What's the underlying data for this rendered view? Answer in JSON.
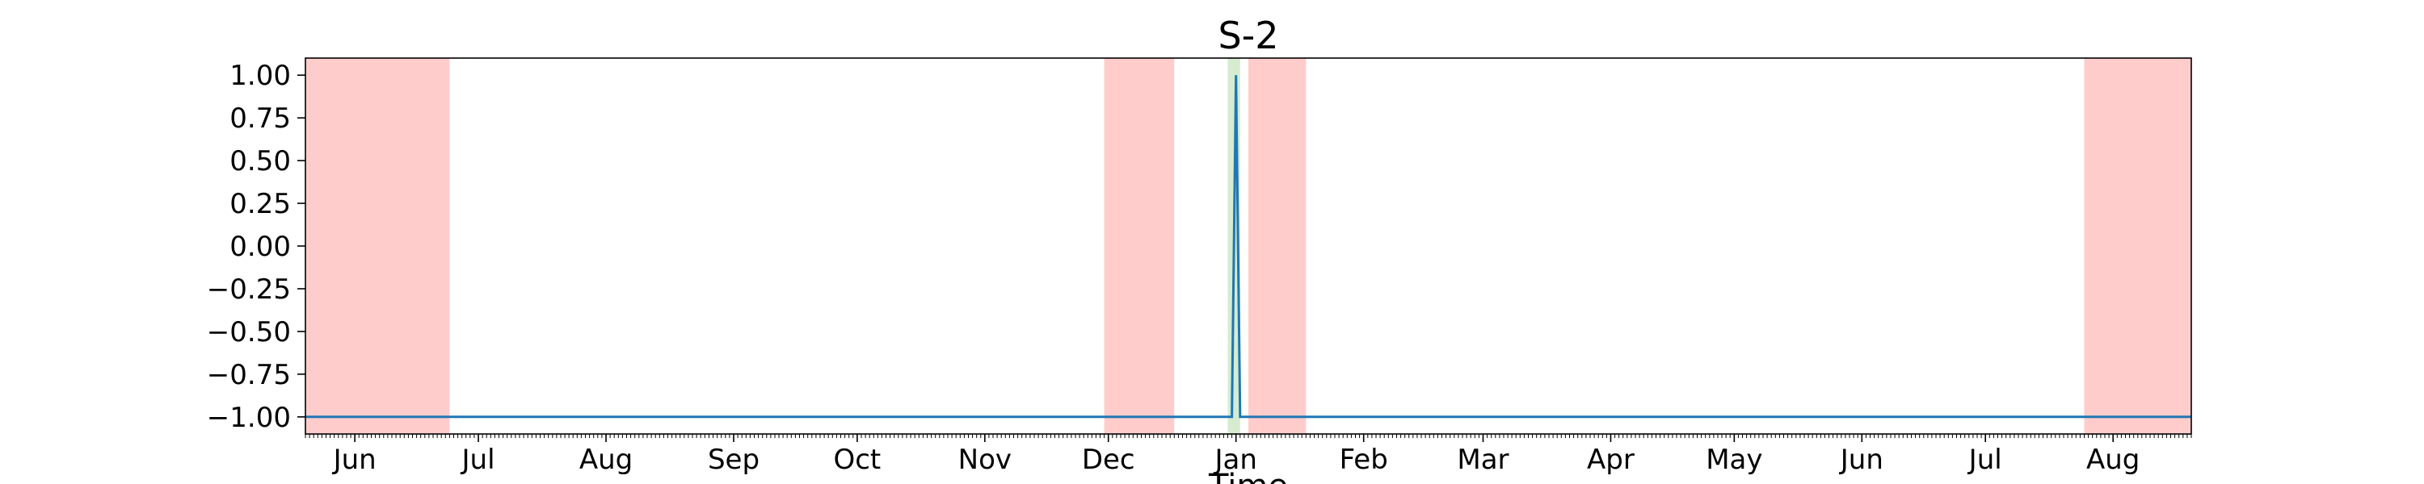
{
  "chart_data": {
    "type": "line",
    "title": "S-2",
    "xlabel": "Time",
    "ylabel": "",
    "x_range": [
      "2023-05-20",
      "2024-08-20"
    ],
    "ylim": [
      -1.1,
      1.1
    ],
    "yticks": [
      {
        "value": 1.0,
        "label": "1.00"
      },
      {
        "value": 0.75,
        "label": "0.75"
      },
      {
        "value": 0.5,
        "label": "0.50"
      },
      {
        "value": 0.25,
        "label": "0.25"
      },
      {
        "value": 0.0,
        "label": "0.00"
      },
      {
        "value": -0.25,
        "label": "−0.25"
      },
      {
        "value": -0.5,
        "label": "−0.50"
      },
      {
        "value": -0.75,
        "label": "−0.75"
      },
      {
        "value": -1.0,
        "label": "−1.00"
      }
    ],
    "xticks": [
      {
        "date": "2023-06-01",
        "label": "Jun"
      },
      {
        "date": "2023-07-01",
        "label": "Jul"
      },
      {
        "date": "2023-08-01",
        "label": "Aug"
      },
      {
        "date": "2023-09-01",
        "label": "Sep"
      },
      {
        "date": "2023-10-01",
        "label": "Oct"
      },
      {
        "date": "2023-11-01",
        "label": "Nov"
      },
      {
        "date": "2023-12-01",
        "label": "Dec"
      },
      {
        "date": "2024-01-01",
        "label": "Jan"
      },
      {
        "date": "2024-02-01",
        "label": "Feb"
      },
      {
        "date": "2024-03-01",
        "label": "Mar"
      },
      {
        "date": "2024-04-01",
        "label": "Apr"
      },
      {
        "date": "2024-05-01",
        "label": "May"
      },
      {
        "date": "2024-06-01",
        "label": "Jun"
      },
      {
        "date": "2024-07-01",
        "label": "Jul"
      },
      {
        "date": "2024-08-01",
        "label": "Aug"
      }
    ],
    "red_regions": [
      {
        "start": "2023-05-20",
        "end": "2023-06-24"
      },
      {
        "start": "2023-11-30",
        "end": "2023-12-17"
      },
      {
        "start": "2024-01-04",
        "end": "2024-01-18"
      },
      {
        "start": "2024-07-25",
        "end": "2024-08-20"
      }
    ],
    "green_regions": [
      {
        "start": "2023-12-30",
        "end": "2024-01-02"
      }
    ],
    "series": [
      {
        "color": "#1f77b4",
        "x": [
          "2023-05-20",
          "2023-12-31",
          "2024-01-01",
          "2024-01-02",
          "2024-08-20"
        ],
        "y": [
          -1,
          -1,
          1,
          -1,
          -1
        ]
      }
    ],
    "colors": {
      "line": "#1f77b4",
      "red_region": "#ffcccc",
      "green_region": "#d5ecd0"
    },
    "grid": false,
    "legend": "none"
  }
}
